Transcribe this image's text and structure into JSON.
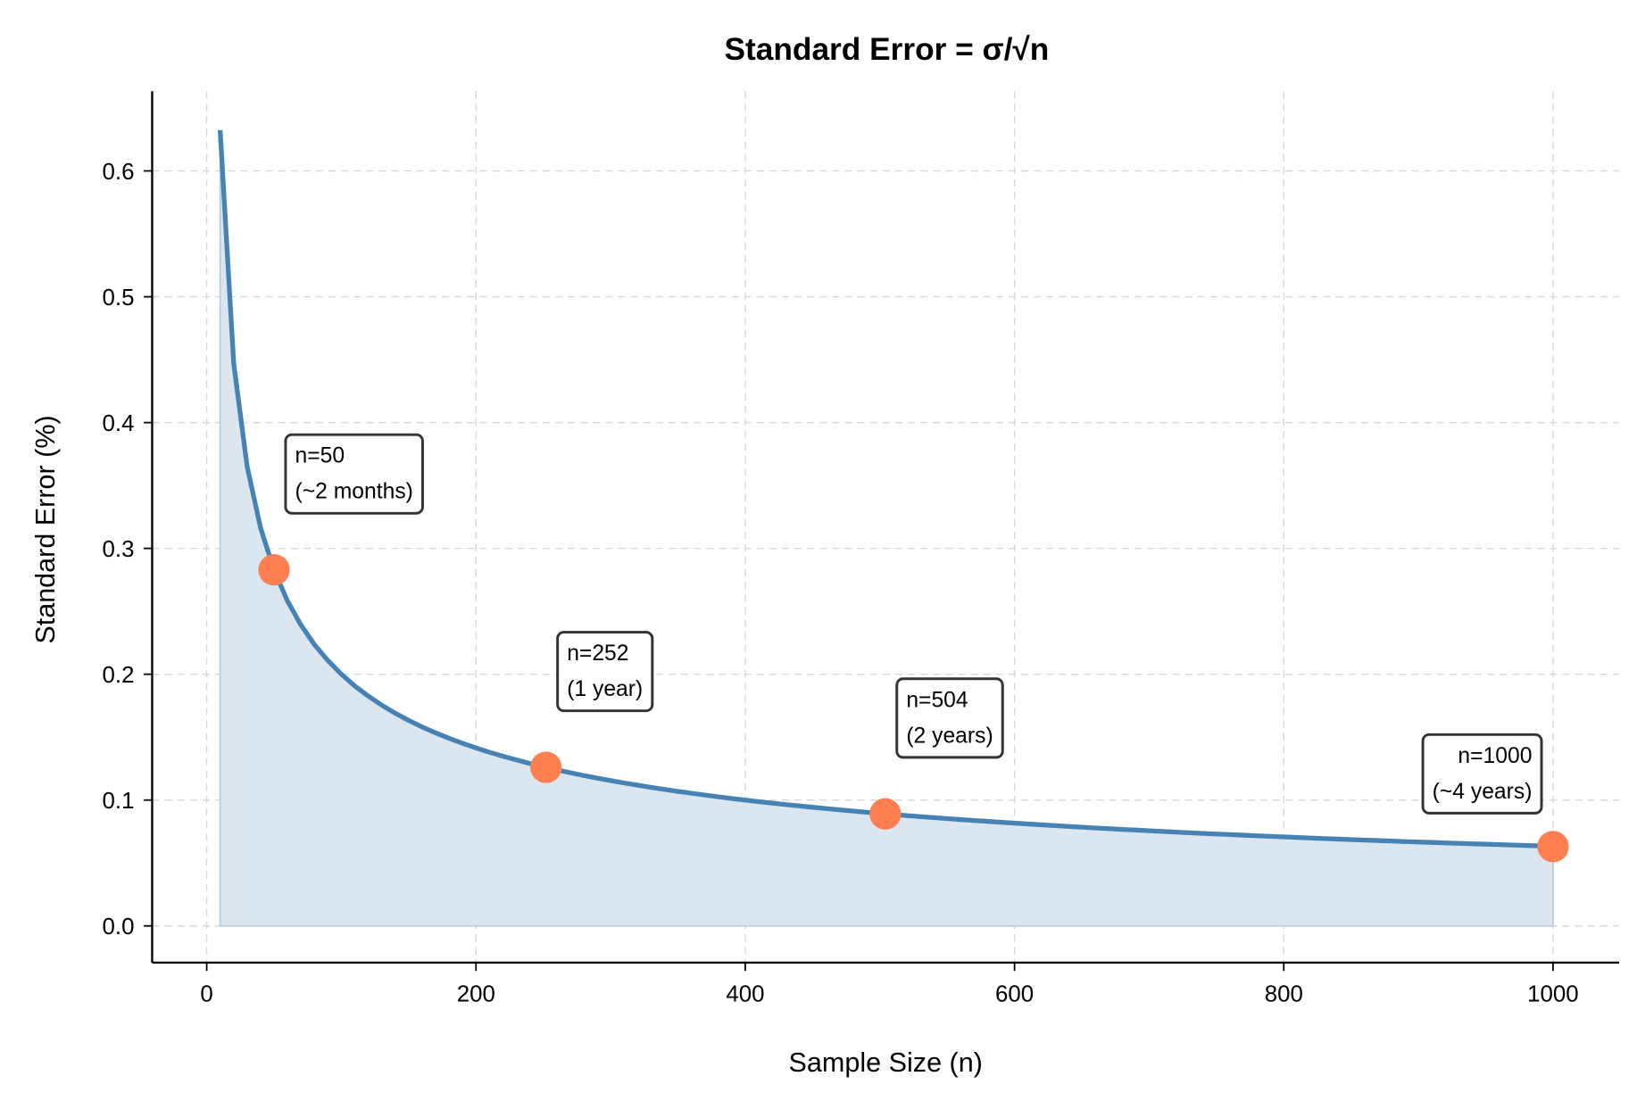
{
  "chart_data": {
    "type": "line",
    "title": "Standard Error = σ/√n",
    "xlabel": "Sample Size (n)",
    "ylabel": "Standard Error (%)",
    "xlim": [
      -40,
      1050
    ],
    "ylim": [
      -0.03,
      0.665
    ],
    "xticks": [
      0,
      200,
      400,
      600,
      800,
      1000
    ],
    "yticks": [
      0.0,
      0.1,
      0.2,
      0.3,
      0.4,
      0.5,
      0.6
    ],
    "ytick_labels": [
      "0.0",
      "0.1",
      "0.2",
      "0.3",
      "0.4",
      "0.5",
      "0.6"
    ],
    "grid": true,
    "series": [
      {
        "sigma": 2,
        "n_range": [
          10,
          1000
        ],
        "formula": "sigma/sqrt(n)",
        "filled": true
      }
    ],
    "highlight_points": [
      {
        "n": 50,
        "value": 0.283,
        "label_line1": "n=50",
        "label_line2": "(~2 months)"
      },
      {
        "n": 252,
        "value": 0.126,
        "label_line1": "n=252",
        "label_line2": "(1 year)"
      },
      {
        "n": 504,
        "value": 0.089,
        "label_line1": "n=504",
        "label_line2": "(2 years)"
      },
      {
        "n": 1000,
        "value": 0.063,
        "label_line1": "n=1000",
        "label_line2": "(~4 years)"
      }
    ],
    "colors": {
      "line": "#4682b4",
      "fill": "#dbe6f0",
      "points": "#ff7f50",
      "box_edge": "#333333"
    }
  }
}
